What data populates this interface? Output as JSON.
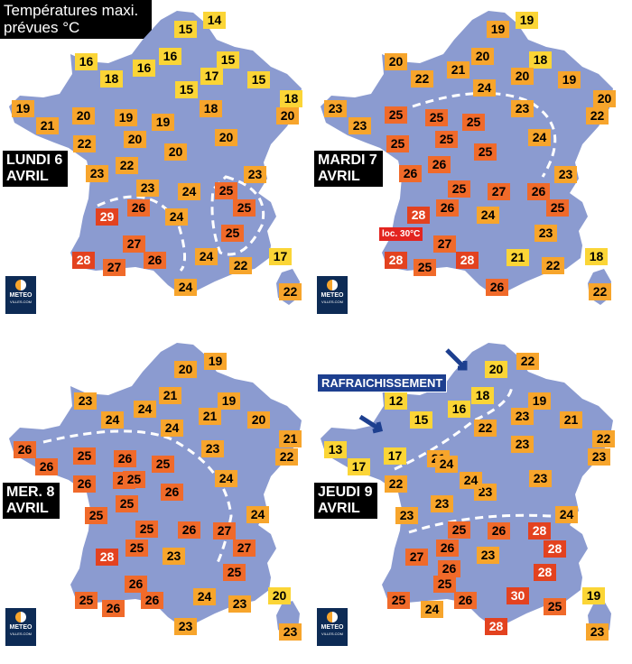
{
  "title": {
    "line1": "Températures maxi.",
    "line2": "prévues °C"
  },
  "logo": {
    "line1": "METEO",
    "line2": "VILLES.COM"
  },
  "colors": {
    "map": "#8b9bd0",
    "yellow": "#fbd536",
    "orange": "#f7a52c",
    "dark_orange": "#f06a2a",
    "red": "#e3421f",
    "arrow": "#1d3f8f"
  },
  "panels": [
    {
      "day_line1": "LUNDI 6",
      "day_line2": "AVRIL",
      "temps": [
        {
          "v": "14",
          "c": "y"
        },
        {
          "v": "15",
          "c": "y"
        },
        {
          "v": "16",
          "c": "y"
        },
        {
          "v": "16",
          "c": "y"
        },
        {
          "v": "16",
          "c": "y"
        },
        {
          "v": "15",
          "c": "y"
        },
        {
          "v": "18",
          "c": "y"
        },
        {
          "v": "15",
          "c": "y"
        },
        {
          "v": "17",
          "c": "y"
        },
        {
          "v": "15",
          "c": "y"
        },
        {
          "v": "18",
          "c": "y"
        },
        {
          "v": "19",
          "c": "o"
        },
        {
          "v": "18",
          "c": "o"
        },
        {
          "v": "20",
          "c": "o"
        },
        {
          "v": "19",
          "c": "o"
        },
        {
          "v": "19",
          "c": "o"
        },
        {
          "v": "21",
          "c": "o"
        },
        {
          "v": "20",
          "c": "o"
        },
        {
          "v": "22",
          "c": "o"
        },
        {
          "v": "20",
          "c": "o"
        },
        {
          "v": "20",
          "c": "o"
        },
        {
          "v": "20",
          "c": "o"
        },
        {
          "v": "22",
          "c": "o"
        },
        {
          "v": "23",
          "c": "o"
        },
        {
          "v": "23",
          "c": "o"
        },
        {
          "v": "23",
          "c": "o"
        },
        {
          "v": "24",
          "c": "o"
        },
        {
          "v": "25",
          "c": "d"
        },
        {
          "v": "26",
          "c": "d"
        },
        {
          "v": "29",
          "c": "r"
        },
        {
          "v": "24",
          "c": "o"
        },
        {
          "v": "25",
          "c": "d"
        },
        {
          "v": "27",
          "c": "d"
        },
        {
          "v": "25",
          "c": "d"
        },
        {
          "v": "28",
          "c": "r"
        },
        {
          "v": "27",
          "c": "d"
        },
        {
          "v": "26",
          "c": "d"
        },
        {
          "v": "24",
          "c": "o"
        },
        {
          "v": "22",
          "c": "o"
        },
        {
          "v": "17",
          "c": "y"
        },
        {
          "v": "24",
          "c": "o"
        },
        {
          "v": "22",
          "c": "o"
        }
      ]
    },
    {
      "day_line1": "MARDI 7",
      "day_line2": "AVRIL",
      "annotation": "loc. 30°C",
      "temps": [
        {
          "v": "19",
          "c": "y"
        },
        {
          "v": "19",
          "c": "o"
        },
        {
          "v": "20",
          "c": "o"
        },
        {
          "v": "20",
          "c": "o"
        },
        {
          "v": "18",
          "c": "y"
        },
        {
          "v": "22",
          "c": "o"
        },
        {
          "v": "21",
          "c": "o"
        },
        {
          "v": "20",
          "c": "o"
        },
        {
          "v": "19",
          "c": "o"
        },
        {
          "v": "24",
          "c": "o"
        },
        {
          "v": "20",
          "c": "o"
        },
        {
          "v": "23",
          "c": "o"
        },
        {
          "v": "22",
          "c": "o"
        },
        {
          "v": "23",
          "c": "o"
        },
        {
          "v": "23",
          "c": "o"
        },
        {
          "v": "25",
          "c": "d"
        },
        {
          "v": "25",
          "c": "d"
        },
        {
          "v": "25",
          "c": "d"
        },
        {
          "v": "25",
          "c": "d"
        },
        {
          "v": "25",
          "c": "d"
        },
        {
          "v": "24",
          "c": "o"
        },
        {
          "v": "25",
          "c": "d"
        },
        {
          "v": "26",
          "c": "d"
        },
        {
          "v": "26",
          "c": "d"
        },
        {
          "v": "23",
          "c": "o"
        },
        {
          "v": "25",
          "c": "d"
        },
        {
          "v": "27",
          "c": "d"
        },
        {
          "v": "26",
          "c": "d"
        },
        {
          "v": "26",
          "c": "d"
        },
        {
          "v": "25",
          "c": "d"
        },
        {
          "v": "28",
          "c": "r"
        },
        {
          "v": "24",
          "c": "o"
        },
        {
          "v": "23",
          "c": "o"
        },
        {
          "v": "27",
          "c": "d"
        },
        {
          "v": "28",
          "c": "r"
        },
        {
          "v": "25",
          "c": "d"
        },
        {
          "v": "21",
          "c": "y"
        },
        {
          "v": "22",
          "c": "o"
        },
        {
          "v": "18",
          "c": "y"
        },
        {
          "v": "28",
          "c": "r"
        },
        {
          "v": "26",
          "c": "d"
        },
        {
          "v": "22",
          "c": "o"
        }
      ]
    },
    {
      "day_line1": "MER. 8",
      "day_line2": "AVRIL",
      "temps": [
        {
          "v": "19",
          "c": "o"
        },
        {
          "v": "20",
          "c": "o"
        },
        {
          "v": "21",
          "c": "o"
        },
        {
          "v": "23",
          "c": "o"
        },
        {
          "v": "24",
          "c": "o"
        },
        {
          "v": "24",
          "c": "o"
        },
        {
          "v": "19",
          "c": "o"
        },
        {
          "v": "21",
          "c": "o"
        },
        {
          "v": "24",
          "c": "o"
        },
        {
          "v": "20",
          "c": "o"
        },
        {
          "v": "21",
          "c": "o"
        },
        {
          "v": "26",
          "c": "d"
        },
        {
          "v": "26",
          "c": "d"
        },
        {
          "v": "25",
          "c": "d"
        },
        {
          "v": "26",
          "c": "d"
        },
        {
          "v": "23",
          "c": "o"
        },
        {
          "v": "22",
          "c": "o"
        },
        {
          "v": "26",
          "c": "d"
        },
        {
          "v": "25",
          "c": "d"
        },
        {
          "v": "25",
          "c": "d"
        },
        {
          "v": "26",
          "c": "d"
        },
        {
          "v": "24",
          "c": "o"
        },
        {
          "v": "25",
          "c": "d"
        },
        {
          "v": "25",
          "c": "d"
        },
        {
          "v": "25",
          "c": "d"
        },
        {
          "v": "24",
          "c": "o"
        },
        {
          "v": "25",
          "c": "d"
        },
        {
          "v": "26",
          "c": "d"
        },
        {
          "v": "27",
          "c": "d"
        },
        {
          "v": "28",
          "c": "r"
        },
        {
          "v": "25",
          "c": "d"
        },
        {
          "v": "23",
          "c": "o"
        },
        {
          "v": "27",
          "c": "d"
        },
        {
          "v": "26",
          "c": "d"
        },
        {
          "v": "25",
          "c": "d"
        },
        {
          "v": "26",
          "c": "d"
        },
        {
          "v": "25",
          "c": "d"
        },
        {
          "v": "26",
          "c": "d"
        },
        {
          "v": "24",
          "c": "o"
        },
        {
          "v": "23",
          "c": "o"
        },
        {
          "v": "20",
          "c": "y"
        },
        {
          "v": "23",
          "c": "o"
        },
        {
          "v": "23",
          "c": "o"
        }
      ]
    },
    {
      "day_line1": "JEUDI 9",
      "day_line2": "AVRIL",
      "annotation": "RAFRAICHISSEMENT",
      "temps": [
        {
          "v": "20",
          "c": "y"
        },
        {
          "v": "22",
          "c": "o"
        },
        {
          "v": "12",
          "c": "y"
        },
        {
          "v": "18",
          "c": "y"
        },
        {
          "v": "19",
          "c": "o"
        },
        {
          "v": "15",
          "c": "y"
        },
        {
          "v": "16",
          "c": "y"
        },
        {
          "v": "22",
          "c": "o"
        },
        {
          "v": "23",
          "c": "o"
        },
        {
          "v": "21",
          "c": "o"
        },
        {
          "v": "22",
          "c": "o"
        },
        {
          "v": "13",
          "c": "y"
        },
        {
          "v": "17",
          "c": "y"
        },
        {
          "v": "17",
          "c": "y"
        },
        {
          "v": "21",
          "c": "o"
        },
        {
          "v": "23",
          "c": "o"
        },
        {
          "v": "23",
          "c": "o"
        },
        {
          "v": "22",
          "c": "o"
        },
        {
          "v": "24",
          "c": "o"
        },
        {
          "v": "23",
          "c": "o"
        },
        {
          "v": "23",
          "c": "o"
        },
        {
          "v": "24",
          "c": "o"
        },
        {
          "v": "23",
          "c": "o"
        },
        {
          "v": "23",
          "c": "o"
        },
        {
          "v": "24",
          "c": "o"
        },
        {
          "v": "25",
          "c": "d"
        },
        {
          "v": "26",
          "c": "d"
        },
        {
          "v": "28",
          "c": "r"
        },
        {
          "v": "26",
          "c": "d"
        },
        {
          "v": "28",
          "c": "r"
        },
        {
          "v": "27",
          "c": "d"
        },
        {
          "v": "23",
          "c": "o"
        },
        {
          "v": "26",
          "c": "d"
        },
        {
          "v": "28",
          "c": "r"
        },
        {
          "v": "25",
          "c": "d"
        },
        {
          "v": "26",
          "c": "d"
        },
        {
          "v": "25",
          "c": "d"
        },
        {
          "v": "24",
          "c": "o"
        },
        {
          "v": "25",
          "c": "d"
        },
        {
          "v": "30",
          "c": "r"
        },
        {
          "v": "19",
          "c": "y"
        },
        {
          "v": "28",
          "c": "r"
        },
        {
          "v": "23",
          "c": "o"
        }
      ]
    }
  ]
}
